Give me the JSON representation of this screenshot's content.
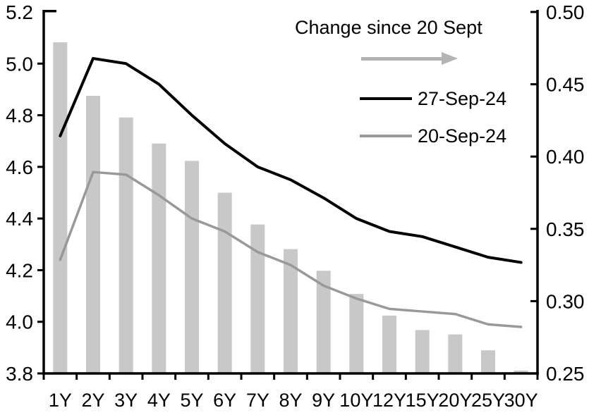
{
  "chart_data": {
    "type": "combo",
    "title": "",
    "categories": [
      "1Y",
      "2Y",
      "3Y",
      "4Y",
      "5Y",
      "6Y",
      "7Y",
      "8Y",
      "9Y",
      "10Y",
      "12Y",
      "15Y",
      "20Y",
      "25Y",
      "30Y"
    ],
    "series": [
      {
        "name": "Change since 20 Sept",
        "type": "bar",
        "axis": "right",
        "color": "#c8c8c8",
        "values": [
          0.479,
          0.442,
          0.427,
          0.409,
          0.397,
          0.375,
          0.353,
          0.336,
          0.321,
          0.305,
          0.29,
          0.28,
          0.277,
          0.266,
          0.252
        ]
      },
      {
        "name": "27-Sep-24",
        "type": "line",
        "axis": "left",
        "color": "#000000",
        "values": [
          4.72,
          5.02,
          5.0,
          4.92,
          4.8,
          4.69,
          4.6,
          4.55,
          4.48,
          4.4,
          4.35,
          4.33,
          4.29,
          4.25,
          4.23
        ]
      },
      {
        "name": "20-Sep-24",
        "type": "line",
        "axis": "left",
        "color": "#999999",
        "values": [
          4.24,
          4.58,
          4.57,
          4.49,
          4.4,
          4.35,
          4.27,
          4.22,
          4.14,
          4.09,
          4.05,
          4.04,
          4.03,
          3.99,
          3.98
        ]
      }
    ],
    "left_axis": {
      "min": 3.8,
      "max": 5.2,
      "ticks": [
        5.2,
        5.0,
        4.8,
        4.6,
        4.4,
        4.2,
        4.0,
        3.8
      ],
      "tick_labels": [
        "5.2",
        "5.0",
        "4.8",
        "4.6",
        "4.4",
        "4.2",
        "4.0",
        "3.8"
      ]
    },
    "right_axis": {
      "min": 0.25,
      "max": 0.5,
      "ticks": [
        0.5,
        0.45,
        0.4,
        0.35,
        0.3,
        0.25
      ],
      "tick_labels": [
        "0.50",
        "0.45",
        "0.40",
        "0.35",
        "0.30",
        "0.25"
      ]
    },
    "grid": false,
    "legend_position": "inside-top-right",
    "legend": {
      "title": "Change since 20 Sept",
      "arrow_color": "#b4b4b4",
      "items": [
        {
          "label": "27-Sep-24",
          "color": "#000000"
        },
        {
          "label": "20-Sep-24",
          "color": "#999999"
        }
      ]
    }
  }
}
